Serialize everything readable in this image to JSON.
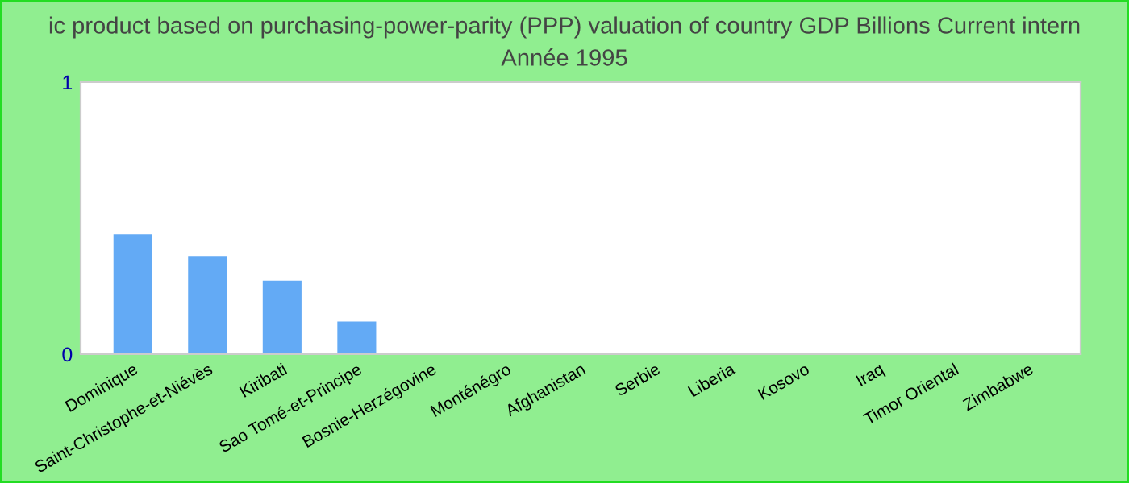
{
  "chart_data": {
    "type": "bar",
    "title": "ic product based on purchasing-power-parity (PPP) valuation of country GDP Billions Current intern",
    "subtitle": "Année 1995",
    "categories": [
      "Dominique",
      "Saint-Christophe-et-Niévès",
      "Kiribati",
      "Sao Tomé-et-Principe",
      "Bosnie-Herzégovine",
      "Monténégro",
      "Afghanistan",
      "Serbie",
      "Liberia",
      "Kosovo",
      "Iraq",
      "Timor Oriental",
      "Zimbabwe"
    ],
    "values": [
      0.44,
      0.36,
      0.27,
      0.12,
      0,
      0,
      0,
      0,
      0,
      0,
      0,
      0,
      0
    ],
    "color": "#63aaf5",
    "ylim": [
      0,
      1
    ],
    "yticks": [
      0,
      1
    ],
    "grid": false,
    "legend": false
  }
}
